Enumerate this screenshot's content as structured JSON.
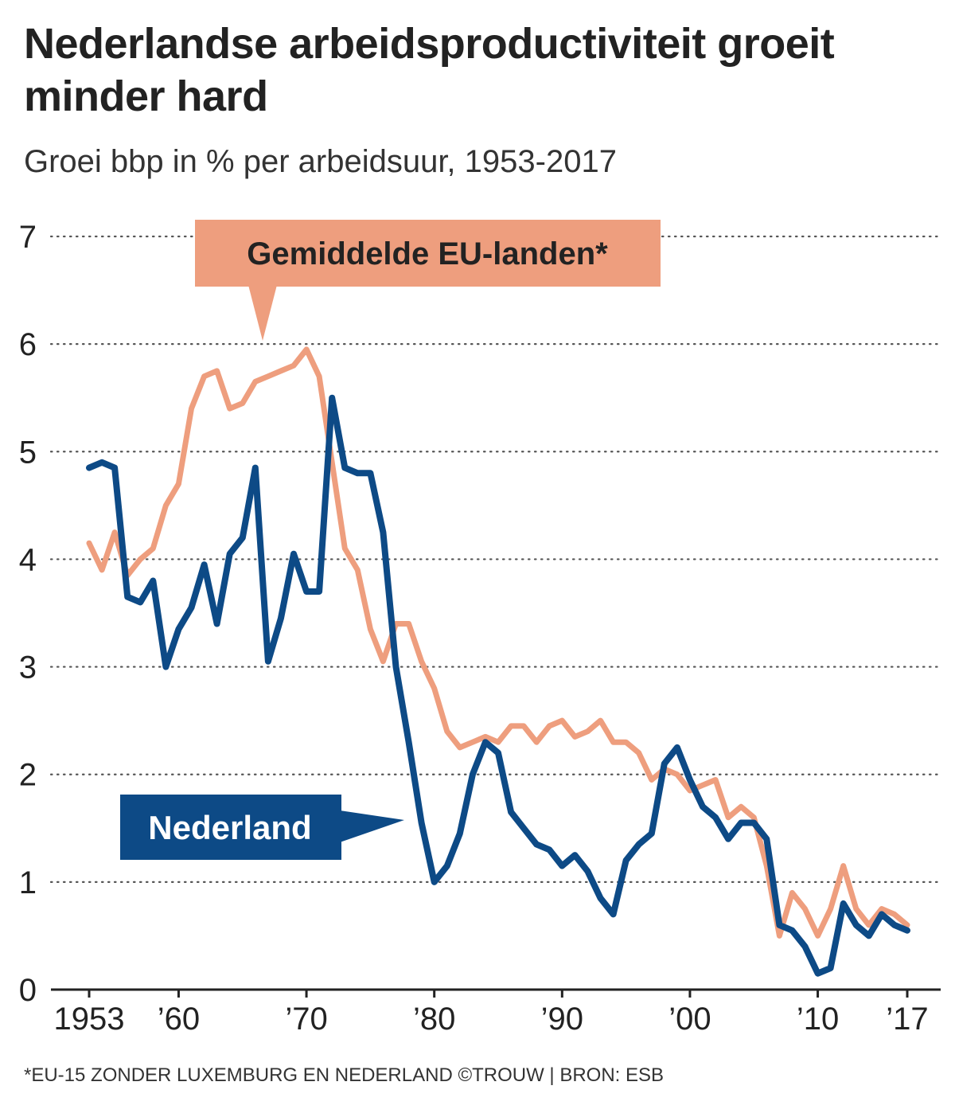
{
  "title": "Nederlandse arbeidsproductiviteit groeit minder hard",
  "subtitle": "Groei bbp in % per arbeidsuur, 1953-2017",
  "footnote": "*EU-15 ZONDER LUXEMBURG EN NEDERLAND ©TROUW | BRON: ESB",
  "colors": {
    "eu": "#ee9e7e",
    "nl": "#0d4a86",
    "grid": "#555555",
    "axis": "#222222"
  },
  "chart_data": {
    "type": "line",
    "x_start": 1953,
    "x_end": 2017,
    "ylim": [
      0,
      7
    ],
    "grid": true,
    "y_ticks": [
      0,
      1,
      2,
      3,
      4,
      5,
      6,
      7
    ],
    "x_ticks": [
      {
        "value": 1953,
        "label": "1953"
      },
      {
        "value": 1960,
        "label": "’60"
      },
      {
        "value": 1970,
        "label": "’70"
      },
      {
        "value": 1980,
        "label": "’80"
      },
      {
        "value": 1990,
        "label": "’90"
      },
      {
        "value": 2000,
        "label": "’00"
      },
      {
        "value": 2010,
        "label": "’10"
      },
      {
        "value": 2017,
        "label": "’17"
      }
    ],
    "series": [
      {
        "name": "Gemiddelde EU-landen*",
        "color": "#ee9e7e",
        "values": [
          4.15,
          3.9,
          4.25,
          3.85,
          4.0,
          4.1,
          4.5,
          4.7,
          5.4,
          5.7,
          5.75,
          5.4,
          5.45,
          5.65,
          5.7,
          5.75,
          5.8,
          5.95,
          5.7,
          4.9,
          4.1,
          3.9,
          3.35,
          3.05,
          3.4,
          3.4,
          3.05,
          2.8,
          2.4,
          2.25,
          2.3,
          2.35,
          2.3,
          2.45,
          2.45,
          2.3,
          2.45,
          2.5,
          2.35,
          2.4,
          2.5,
          2.3,
          2.3,
          2.2,
          1.95,
          2.05,
          2.0,
          1.85,
          1.9,
          1.95,
          1.6,
          1.7,
          1.6,
          1.15,
          0.5,
          0.9,
          0.75,
          0.5,
          0.75,
          1.15,
          0.75,
          0.6,
          0.75,
          0.7,
          0.6
        ]
      },
      {
        "name": "Nederland",
        "color": "#0d4a86",
        "values": [
          4.85,
          4.9,
          4.85,
          3.65,
          3.6,
          3.8,
          3.0,
          3.35,
          3.55,
          3.95,
          3.4,
          4.05,
          4.2,
          4.85,
          3.05,
          3.45,
          4.05,
          3.7,
          3.7,
          5.5,
          4.85,
          4.8,
          4.8,
          4.25,
          3.0,
          2.3,
          1.55,
          1.0,
          1.15,
          1.45,
          2.0,
          2.3,
          2.2,
          1.65,
          1.5,
          1.35,
          1.3,
          1.15,
          1.25,
          1.1,
          0.85,
          0.7,
          1.2,
          1.35,
          1.45,
          2.1,
          2.25,
          1.95,
          1.7,
          1.6,
          1.4,
          1.55,
          1.55,
          1.4,
          0.6,
          0.55,
          0.4,
          0.15,
          0.2,
          0.8,
          0.6,
          0.5,
          0.7,
          0.6,
          0.55
        ]
      }
    ]
  }
}
